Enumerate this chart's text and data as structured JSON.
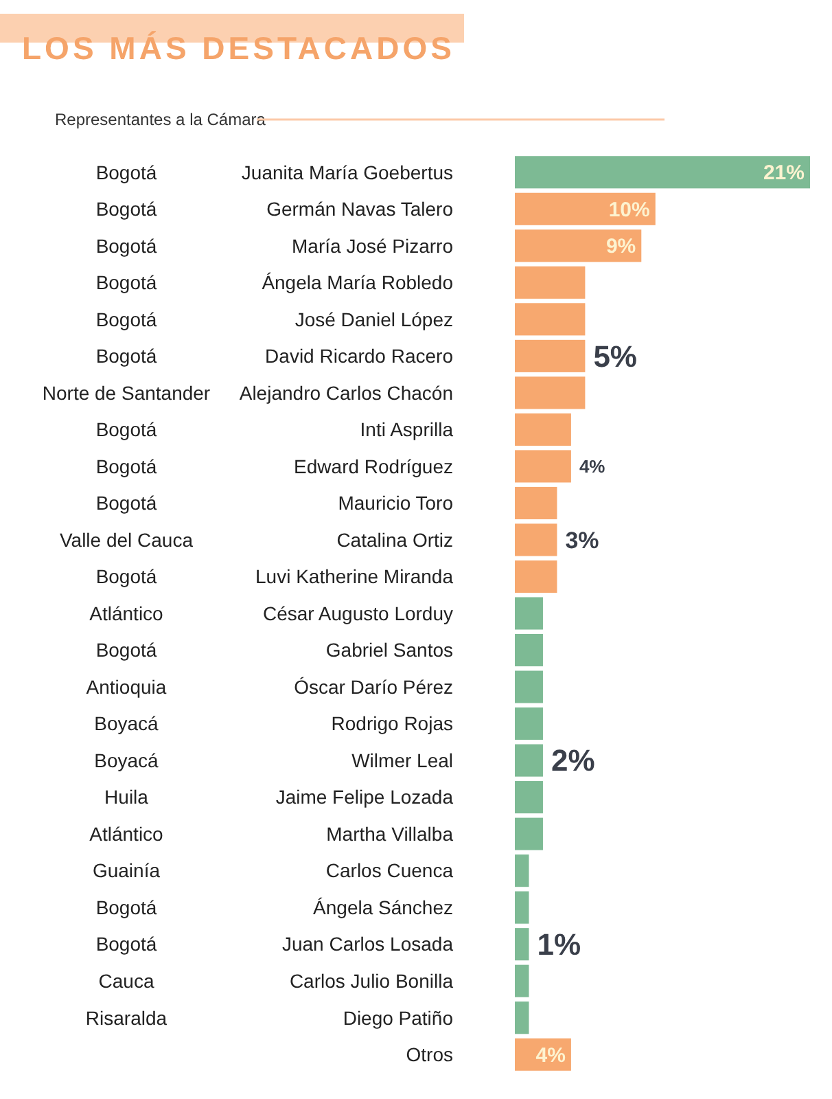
{
  "chart_data": {
    "type": "bar",
    "orientation": "horizontal",
    "title": "LOS MÁS DESTACADOS",
    "subtitle": "Representantes a la Cámara",
    "categories": [
      "Juanita María Goebertus",
      "Germán Navas Talero",
      "María José Pizarro",
      "Ángela María Robledo",
      "José Daniel López",
      "David Ricardo Racero",
      "Alejandro Carlos Chacón",
      "Inti Asprilla",
      "Edward Rodríguez",
      "Mauricio Toro",
      "Catalina Ortiz",
      "Luvi Katherine Miranda",
      "César Augusto Lorduy",
      "Gabriel Santos",
      "Óscar Darío Pérez",
      "Rodrigo Rojas",
      "Wilmer Leal",
      "Jaime Felipe Lozada",
      "Martha Villalba",
      "Carlos Cuenca",
      "Ángela Sánchez",
      "Juan Carlos Losada",
      "Carlos Julio Bonilla",
      "Diego Patiño",
      "Otros"
    ],
    "values": [
      21,
      10,
      9,
      5,
      5,
      5,
      5,
      4,
      4,
      3,
      3,
      3,
      2,
      2,
      2,
      2,
      2,
      2,
      2,
      1,
      1,
      1,
      1,
      1,
      4
    ],
    "colors": [
      "#7dba94",
      "#f7a86f",
      "#f7a86f",
      "#f7a86f",
      "#f7a86f",
      "#f7a86f",
      "#f7a86f",
      "#f7a86f",
      "#f7a86f",
      "#f7a86f",
      "#f7a86f",
      "#f7a86f",
      "#7dba94",
      "#7dba94",
      "#7dba94",
      "#7dba94",
      "#7dba94",
      "#7dba94",
      "#7dba94",
      "#7dba94",
      "#7dba94",
      "#7dba94",
      "#7dba94",
      "#7dba94",
      "#f7a86f"
    ],
    "value_labels": [
      "21%",
      "10%",
      "9%",
      null,
      null,
      "5%",
      null,
      null,
      "4%",
      null,
      "3%",
      null,
      null,
      null,
      null,
      null,
      "2%",
      null,
      null,
      null,
      null,
      "1%",
      null,
      null,
      "4%"
    ],
    "annotations": [
      "Bogotá",
      "Bogotá",
      "Bogotá",
      "Bogotá",
      "Bogotá",
      "Bogotá",
      "Norte de Santander",
      "Bogotá",
      "Bogotá",
      "Bogotá",
      "Valle del Cauca",
      "Bogotá",
      "Atlántico",
      "Bogotá",
      "Antioquia",
      "Boyacá",
      "Boyacá",
      "Huila",
      "Atlántico",
      "Guainía",
      "Bogotá",
      "Bogotá",
      "Cauca",
      "Risaralda"
    ]
  }
}
